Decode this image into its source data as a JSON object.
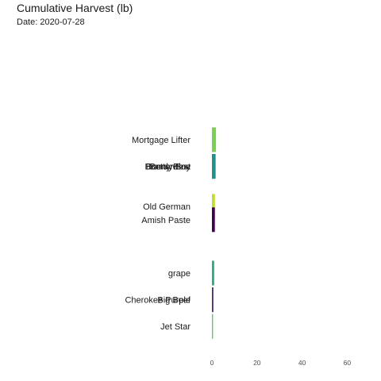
{
  "chart_data": {
    "type": "bar",
    "orientation": "horizontal",
    "title": "Cumulative Harvest (lb)",
    "subtitle": "Date: 2020-07-28",
    "xlabel": "",
    "ylabel": "",
    "xlim": [
      0,
      70
    ],
    "x_ticks": [
      0,
      20,
      40,
      60
    ],
    "grid": false,
    "legend": "none",
    "bars": [
      {
        "label": "Mortgage Lifter",
        "value": 1.8,
        "color": "#7AD151",
        "rank": 1.0
      },
      {
        "label": "Better Boy",
        "value": 1.6,
        "color": "#2C728E",
        "rank": 3.0
      },
      {
        "label": "Brandywine",
        "value": 1.6,
        "color": "#3B528B",
        "rank": 3.0
      },
      {
        "label": "Bonny Best",
        "value": 1.5,
        "color": "#21918C",
        "rank": 3.0
      },
      {
        "label": "Old German",
        "value": 1.3,
        "color": "#BDDF26",
        "rank": 6.0
      },
      {
        "label": "Amish Paste",
        "value": 1.3,
        "color": "#440154",
        "rank": 7.0
      },
      {
        "label": "grape",
        "value": 1.0,
        "color": "#28AE80",
        "rank": 11.0
      },
      {
        "label": "Cherokee Purple",
        "value": 0.6,
        "color": "#482878",
        "rank": 13.0
      },
      {
        "label": "Big Beef",
        "value": 0.6,
        "color": "#472D7B",
        "rank": 13.0
      },
      {
        "label": "Jet Star",
        "value": 0.5,
        "color": "#5EC962",
        "rank": 15.0
      }
    ]
  }
}
